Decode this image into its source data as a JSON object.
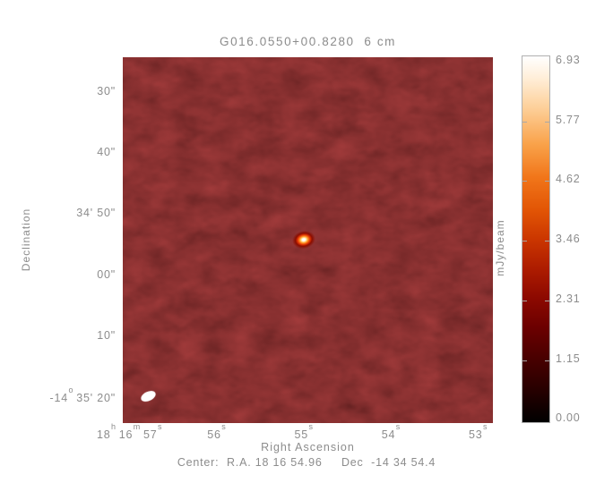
{
  "title": "G016.0550+00.8280  6 cm",
  "axes": {
    "y": {
      "label": "Declination",
      "ticks": [
        "30\"",
        "40\"",
        "34' 50\"",
        "00\"",
        "10\"",
        "-14^o^ 35' 20\""
      ]
    },
    "x": {
      "label": "Right Ascension",
      "ticks": [
        "18^h^ 16^m^ 57^s^",
        "56^s^",
        "55^s^",
        "54^s^",
        "53^s^"
      ]
    }
  },
  "colorbar": {
    "unit": "mJy/beam",
    "ticks": [
      "6.93",
      "5.77",
      "4.62",
      "3.46",
      "2.31",
      "1.15",
      "0.00"
    ],
    "min": 0.0,
    "max": 6.93
  },
  "caption": "Center:  R.A. 18 16 54.96     Dec  -14 34 54.4",
  "colors": {
    "text_gray": "#8c8c8c",
    "map_background": "#2e0505",
    "source_core": "#ffffff",
    "beam": "#ffffff",
    "colormap": "black-red-orange-white heat"
  },
  "chart_data": {
    "type": "heatmap",
    "title": "G016.0550+00.8280  6 cm",
    "xlabel": "Right Ascension",
    "ylabel": "Declination",
    "x_ticks": [
      "18h 16m 57s",
      "56s",
      "55s",
      "54s",
      "53s"
    ],
    "y_ticks": [
      "30\"",
      "40\"",
      "34' 50\"",
      "00\"",
      "10\"",
      "-14deg 35' 20\""
    ],
    "colorbar_unit": "mJy/beam",
    "colorbar_range": [
      0.0,
      6.93
    ],
    "colorbar_tick_values": [
      6.93,
      5.77,
      4.62,
      3.46,
      2.31,
      1.15,
      0.0
    ],
    "field_center": {
      "ra": "18 16 54.96",
      "dec": "-14 34 54.4"
    },
    "features": [
      {
        "name": "point-source",
        "ra": "18 16 54.96",
        "dec": "-14 34 54",
        "peak_mJy_per_beam": 6.93
      },
      {
        "name": "synthesized-beam-ellipse",
        "position": "bottom-left of map"
      }
    ],
    "background": "dark red noise field, typical rms well below 1.15 mJy/beam"
  }
}
